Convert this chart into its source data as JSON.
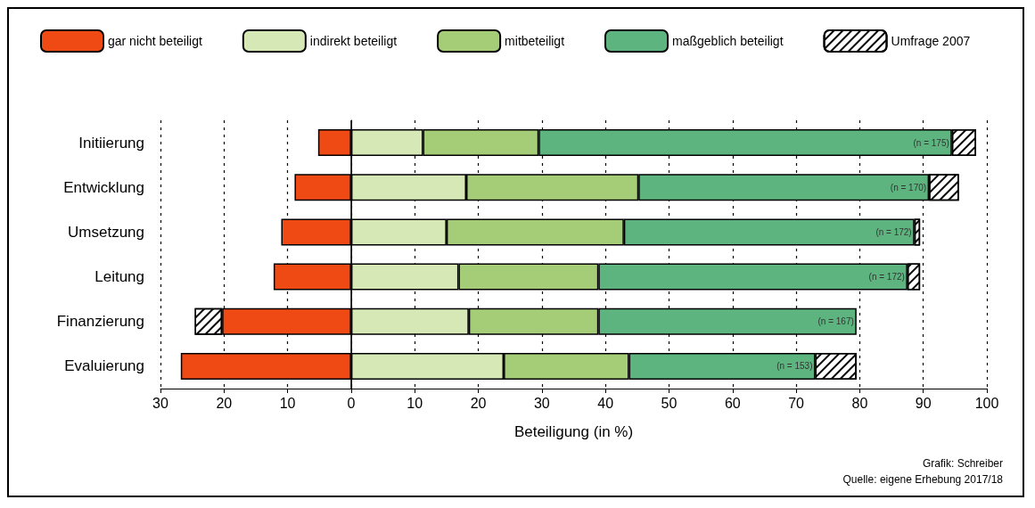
{
  "chart_data": {
    "type": "bar",
    "orientation": "horizontal",
    "stacked": true,
    "categories": [
      "Initiierung",
      "Entwicklung",
      "Umsetzung",
      "Leitung",
      "Finanzierung",
      "Evaluierung"
    ],
    "series": [
      {
        "name": "gar nicht beteiligt",
        "color": "#f04a14",
        "values": [
          -5.2,
          -8.9,
          -11.0,
          -12.2,
          -20.3,
          -26.8
        ]
      },
      {
        "name": "indirekt beteiligt",
        "color": "#d5e8b5",
        "values": [
          11.3,
          18.1,
          15.0,
          16.9,
          18.5,
          24.0
        ]
      },
      {
        "name": "mitbeteiligt",
        "color": "#a5cd78",
        "values": [
          18.2,
          27.1,
          27.9,
          22.0,
          20.4,
          19.7
        ]
      },
      {
        "name": "maßgeblich beteiligt",
        "color": "#5db47f",
        "values": [
          65.0,
          45.7,
          45.7,
          48.6,
          40.6,
          29.3
        ]
      },
      {
        "name": "Umfrage 2007",
        "color": "#ffffff",
        "values": [
          3.8,
          4.7,
          0.9,
          2.0,
          -4.3,
          6.5
        ]
      }
    ],
    "xlim": [
      -30,
      100
    ],
    "xticks": [
      {
        "value": -30,
        "label": "30"
      },
      {
        "value": -20,
        "label": "20"
      },
      {
        "value": -10,
        "label": "10"
      },
      0,
      10,
      20,
      30,
      40,
      50,
      60,
      70,
      80,
      90,
      100
    ],
    "xlabel": "Beteiligung (in %)",
    "grid": "x",
    "legend": "top",
    "ref_lines": [
      {
        "axis": "x",
        "value": 0,
        "color": "#000000",
        "line_style": "solid"
      }
    ],
    "annotations": [
      {
        "text": "(n = 175)",
        "x": 94.5,
        "y": "Initiierung"
      },
      {
        "text": "(n = 170)",
        "x": 90.9,
        "y": "Entwicklung"
      },
      {
        "text": "(n = 172)",
        "x": 88.6,
        "y": "Umsetzung"
      },
      {
        "text": "(n = 172)",
        "x": 87.5,
        "y": "Leitung"
      },
      {
        "text": "(n = 167)",
        "x": 79.5,
        "y": "Finanzierung"
      },
      {
        "text": "(n = 153)",
        "x": 73.0,
        "y": "Evaluierung"
      },
      "Grafik: Schreiber",
      "Quelle: eigene Erhebung 2017/18"
    ]
  }
}
